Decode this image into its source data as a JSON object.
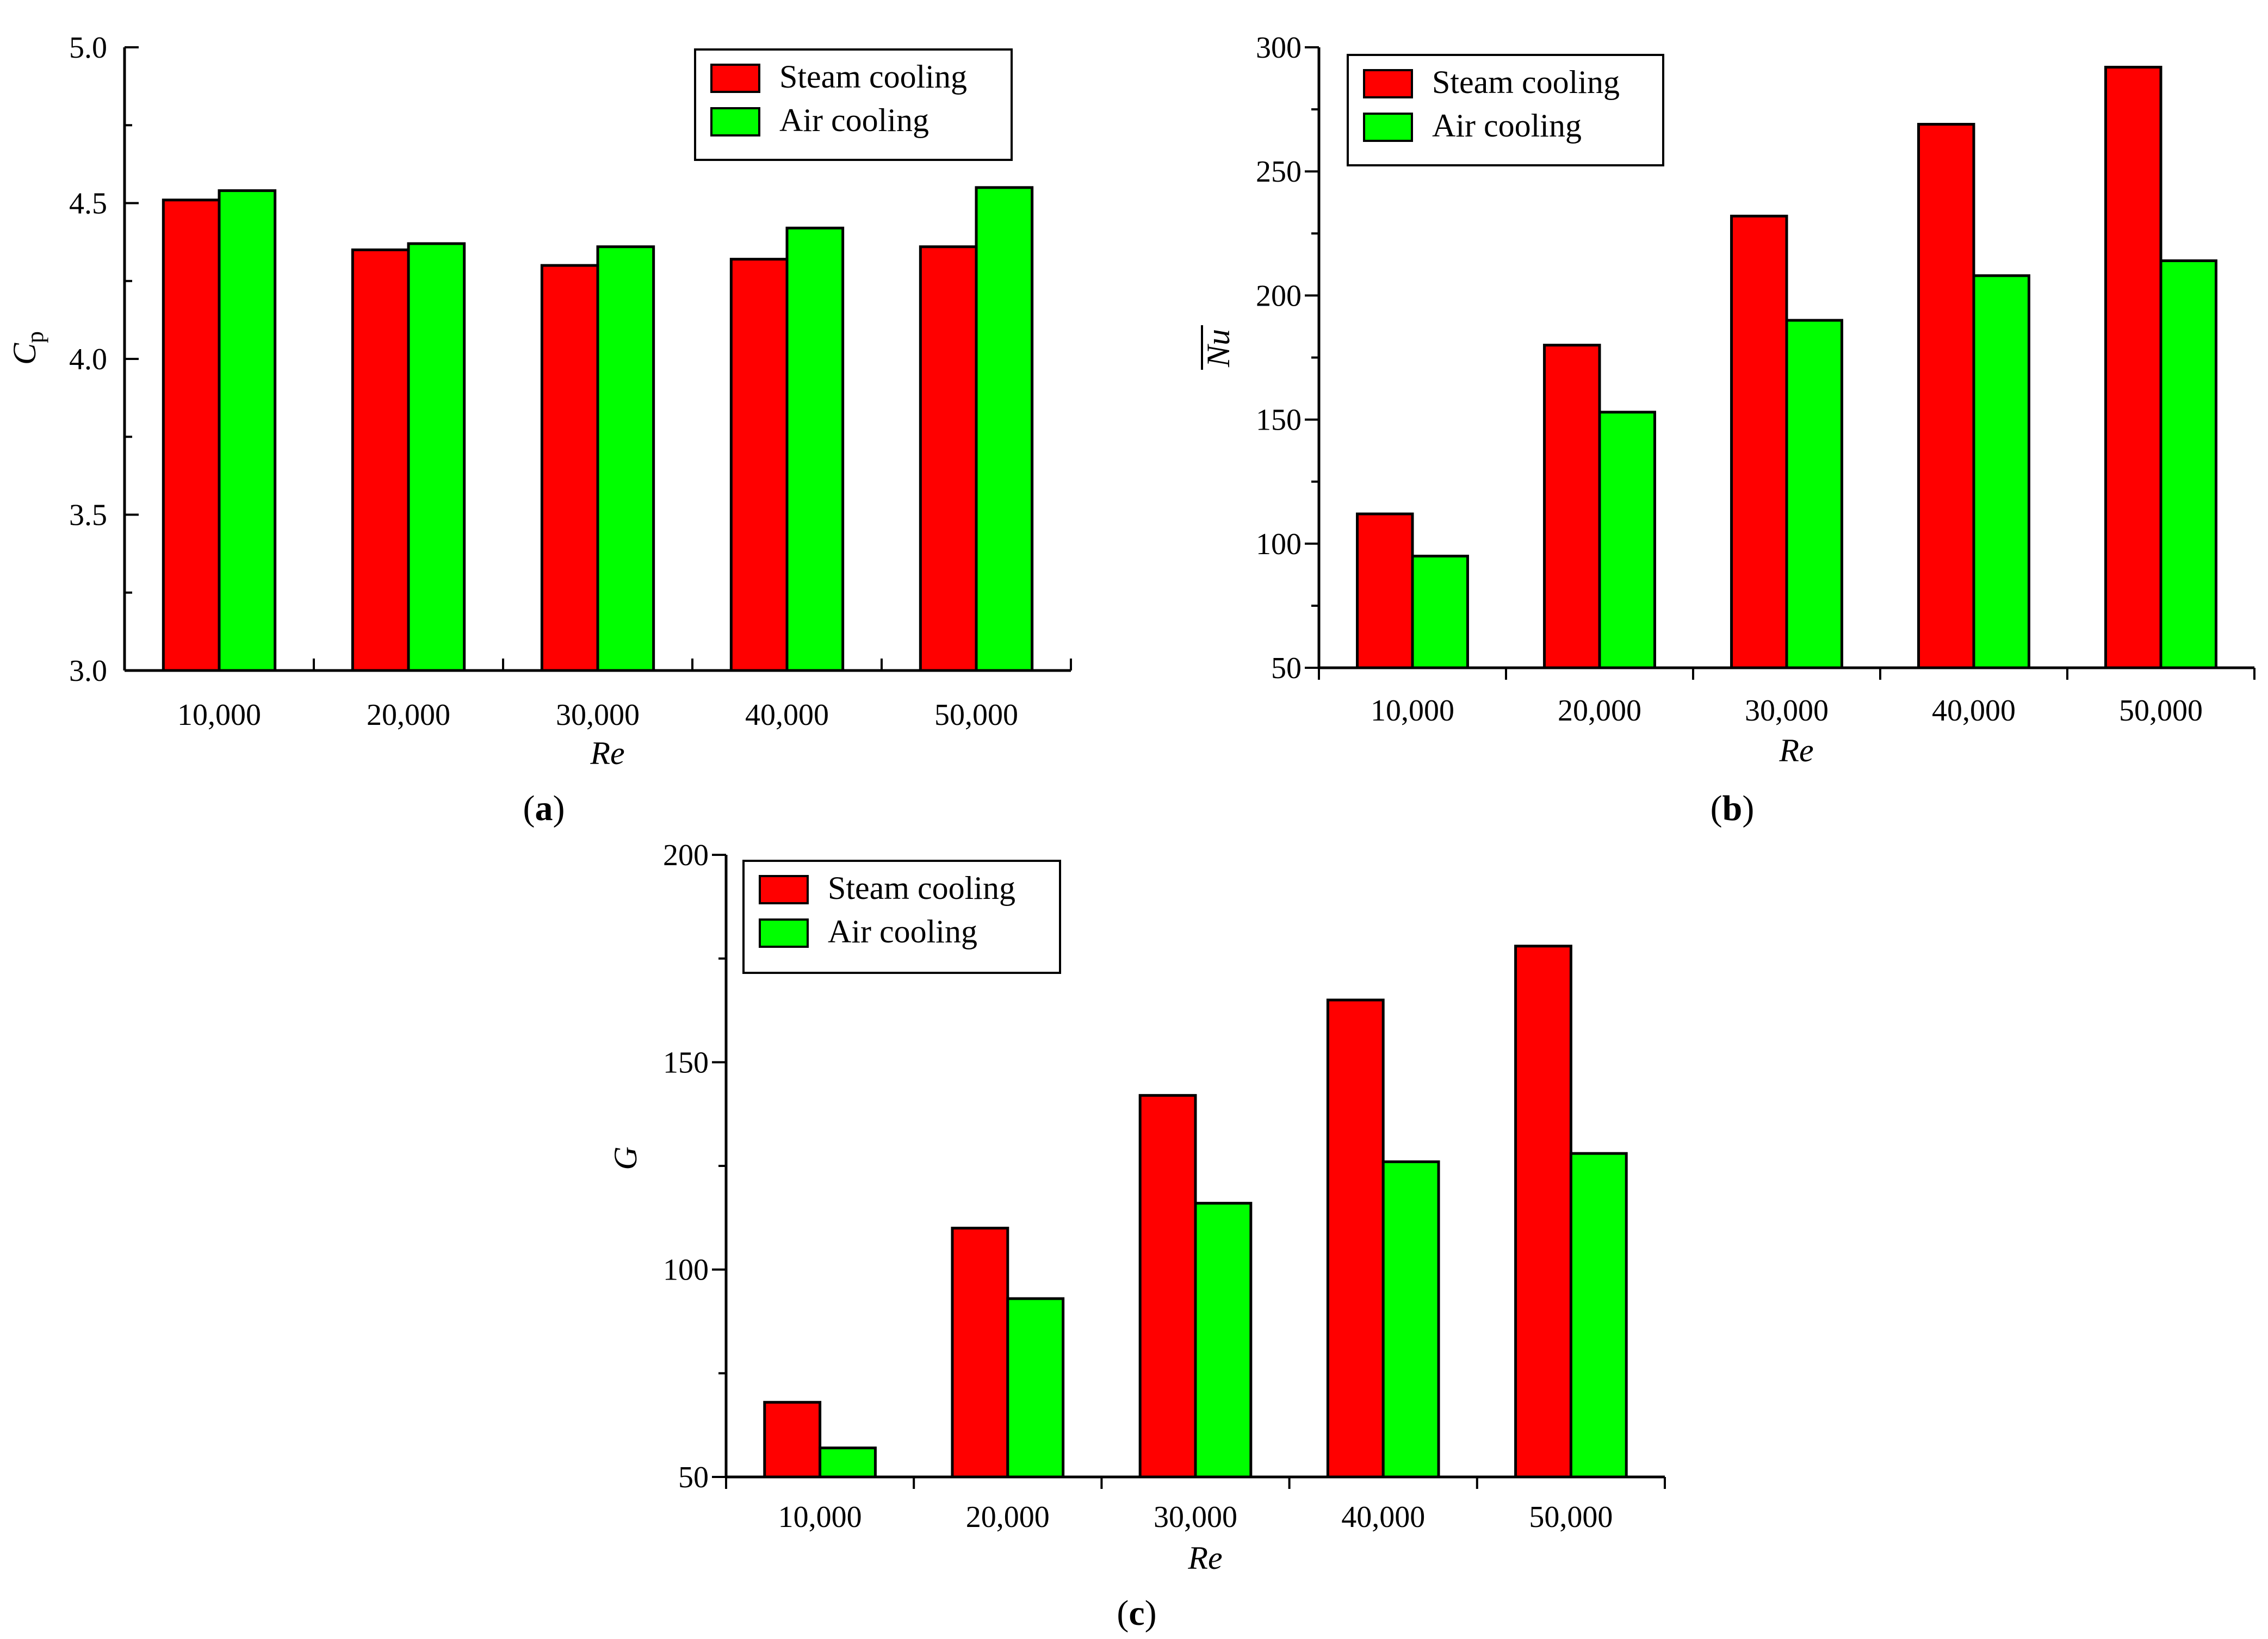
{
  "figure": {
    "panels": [
      "a",
      "b",
      "c"
    ]
  },
  "colors": {
    "steam": "#ff0000",
    "air": "#00ff00",
    "stroke": "#000000"
  },
  "chart_data": [
    {
      "type": "bar",
      "label": "a",
      "label_text": {
        "open": "(",
        "letter": "a",
        "close": ")"
      },
      "title": "",
      "xlabel": "Re",
      "ylabel": {
        "main": "C",
        "sub": "p"
      },
      "categories": [
        "10,000",
        "20,000",
        "30,000",
        "40,000",
        "50,000"
      ],
      "ylim": [
        3.0,
        5.0
      ],
      "yticks": [
        "3.0",
        "3.5",
        "4.0",
        "4.5",
        "5.0"
      ],
      "ytick_values": [
        3.0,
        3.5,
        4.0,
        4.5,
        5.0
      ],
      "series": [
        {
          "name": "Steam cooling",
          "color": "#ff0000",
          "values": [
            4.51,
            4.35,
            4.3,
            4.32,
            4.36
          ]
        },
        {
          "name": "Air cooling",
          "color": "#00ff00",
          "values": [
            4.54,
            4.37,
            4.36,
            4.42,
            4.55
          ]
        }
      ],
      "legend": "top-right"
    },
    {
      "type": "bar",
      "label": "b",
      "label_text": {
        "open": "(",
        "letter": "b",
        "close": ")"
      },
      "title": "",
      "xlabel": "Re",
      "ylabel": {
        "main": "Nu",
        "overline": true
      },
      "categories": [
        "10,000",
        "20,000",
        "30,000",
        "40,000",
        "50,000"
      ],
      "ylim": [
        50,
        300
      ],
      "yticks": [
        "50",
        "100",
        "150",
        "200",
        "250",
        "300"
      ],
      "ytick_values": [
        50,
        100,
        150,
        200,
        250,
        300
      ],
      "series": [
        {
          "name": "Steam cooling",
          "color": "#ff0000",
          "values": [
            112,
            180,
            232,
            269,
            292
          ]
        },
        {
          "name": "Air cooling",
          "color": "#00ff00",
          "values": [
            95,
            153,
            190,
            208,
            214
          ]
        }
      ],
      "legend": "top-left"
    },
    {
      "type": "bar",
      "label": "c",
      "label_text": {
        "open": "(",
        "letter": "c",
        "close": ")"
      },
      "title": "",
      "xlabel": "Re",
      "ylabel": {
        "main": "G"
      },
      "categories": [
        "10,000",
        "20,000",
        "30,000",
        "40,000",
        "50,000"
      ],
      "ylim": [
        50,
        200
      ],
      "yticks": [
        "50",
        "100",
        "150",
        "200"
      ],
      "ytick_values": [
        50,
        100,
        150,
        200
      ],
      "series": [
        {
          "name": "Steam cooling",
          "color": "#ff0000",
          "values": [
            68,
            110,
            142,
            165,
            178
          ]
        },
        {
          "name": "Air cooling",
          "color": "#00ff00",
          "values": [
            57,
            93,
            116,
            126,
            128
          ]
        }
      ],
      "legend": "top-left"
    }
  ]
}
